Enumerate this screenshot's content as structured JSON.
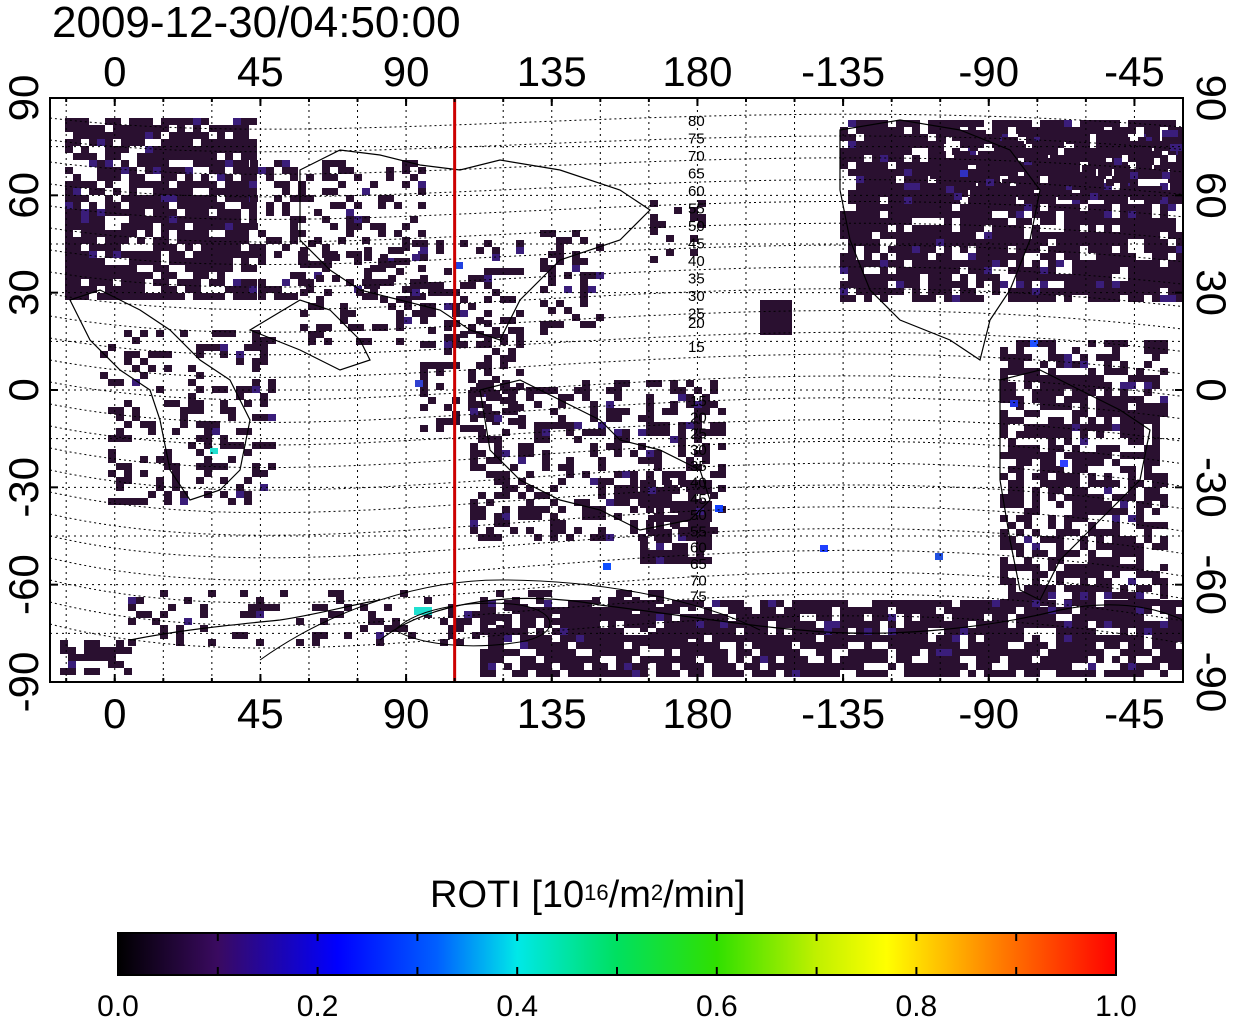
{
  "timestamp": "2009-12-30/04:50:00",
  "map": {
    "lon_ticks_labels": [
      "0",
      "45",
      "90",
      "135",
      "180",
      "-135",
      "-90",
      "-45"
    ],
    "lon_ticks_values": [
      0,
      45,
      90,
      135,
      180,
      225,
      270,
      315
    ],
    "lat_ticks_labels": [
      "90",
      "60",
      "30",
      "0",
      "-30",
      "-60",
      "-90"
    ],
    "lat_ticks_values": [
      90,
      60,
      30,
      0,
      -30,
      -60,
      -90
    ],
    "lon_range": [
      -20,
      330
    ],
    "lat_range": [
      -90,
      90
    ],
    "meridian_line_longitude": 105,
    "meridian_line_color": "#cc0000",
    "contour_labels_north": [
      "80",
      "75",
      "70",
      "65",
      "60",
      "55",
      "50",
      "45",
      "40",
      "35",
      "30",
      "25",
      "20",
      "15"
    ],
    "contour_labels_south": [
      "15",
      "20",
      "25",
      "30",
      "35",
      "40",
      "45",
      "50",
      "55",
      "60",
      "65",
      "70",
      "75"
    ],
    "data_color_dominant": "#2a1030"
  },
  "colorbar": {
    "title_main": "ROTI  [10",
    "title_exp1": "16",
    "title_mid": "/m",
    "title_exp2": "2",
    "title_end": "/min]",
    "tick_labels": [
      "0.0",
      "0.2",
      "0.4",
      "0.6",
      "0.8",
      "1.0"
    ],
    "range": [
      0.0,
      1.0
    ]
  }
}
